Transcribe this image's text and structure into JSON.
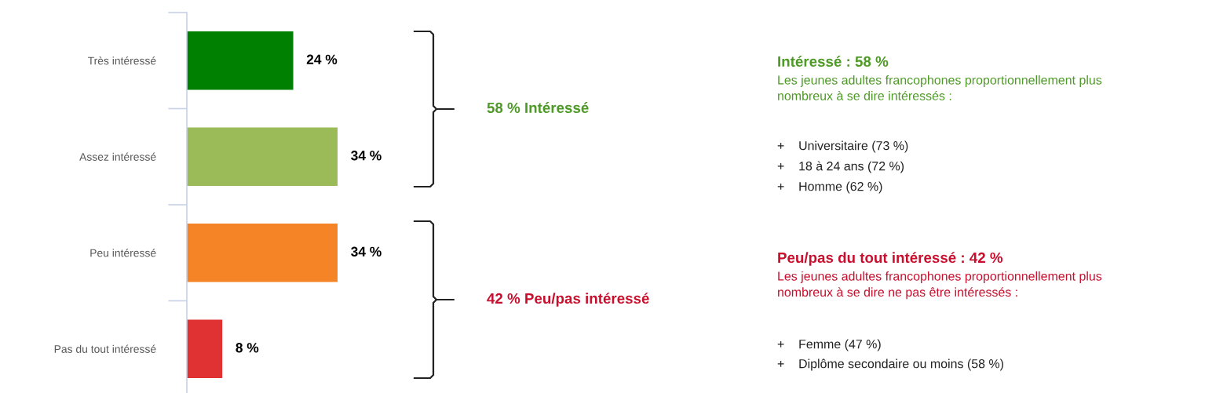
{
  "chart_data": {
    "type": "bar",
    "orientation": "horizontal",
    "categories": [
      "Très intéressé",
      "Assez intéressé",
      "Peu intéressé",
      "Pas du tout intéressé"
    ],
    "values": [
      24,
      34,
      34,
      8
    ],
    "colors": [
      "#008000",
      "#9bbb59",
      "#f58426",
      "#e03232"
    ],
    "value_labels": [
      "24 %",
      "34 %",
      "34 %",
      "8 %"
    ],
    "annotations": [
      "58 % Intéressé",
      "42 % Peu/pas intéressé",
      "Intéressé : 58 %",
      "Les jeunes adultes francophones proportionnellement plus\nnombreux à se dire intéressés :",
      "+    Universitaire (73 %)",
      "+    18 à 24 ans (72 %)",
      "+    Homme (62 %)",
      "Peu/pas du tout intéressé : 42 %",
      "Les jeunes adultes francophones proportionnellement plus\nnombreux à se dire ne pas être intéressés :",
      "+    Femme (47 %)",
      "+    Diplôme secondaire ou moins (58 %)"
    ],
    "grid": false,
    "legend": false
  }
}
